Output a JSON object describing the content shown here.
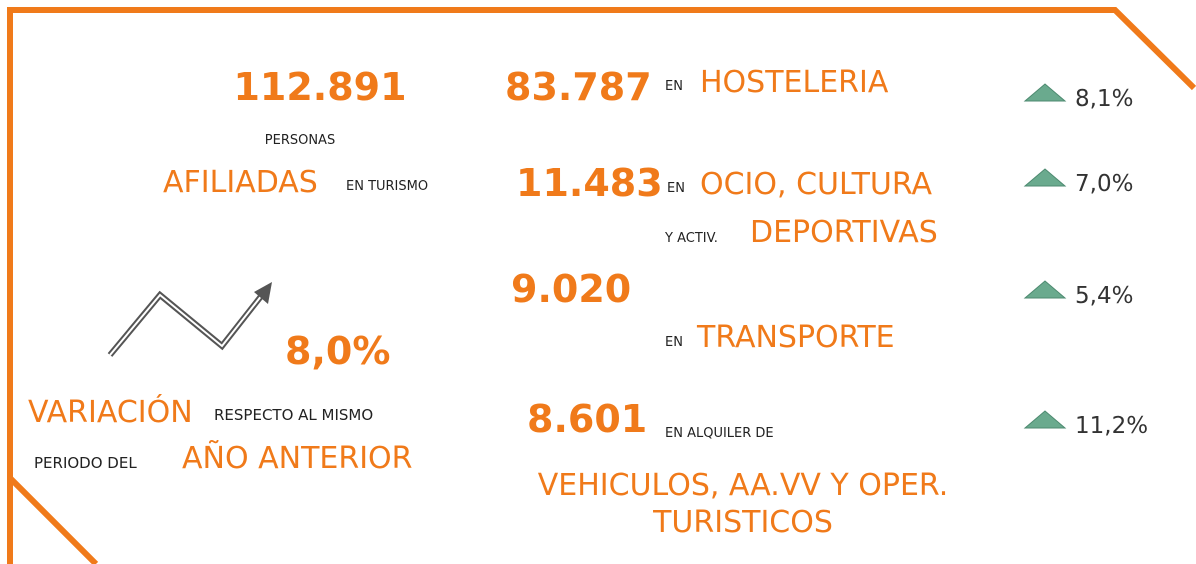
{
  "total": {
    "value": "112.891",
    "line1": "PERSONAS",
    "highlight": "AFILIADAS",
    "rest": "EN TURISMO"
  },
  "variation": {
    "value": "8,0%",
    "highlight1": "VARIACIÓN",
    "rest1": "RESPECTO AL MISMO",
    "rest2": "PERIODO DEL",
    "highlight2": "AÑO ANTERIOR"
  },
  "sectors": [
    {
      "value": "83.787",
      "prefix": "EN",
      "label": "HOSTELERIA",
      "change": "8,1%"
    },
    {
      "value": "11.483",
      "prefix": "EN",
      "label": "OCIO, CULTURA",
      "prefix2": "Y ACTIV.",
      "label2": "DEPORTIVAS",
      "change": "7,0%"
    },
    {
      "value": "9.020",
      "prefix": "EN",
      "label": "TRANSPORTE",
      "change": "5,4%"
    },
    {
      "value": "8.601",
      "prefix": "EN ALQUILER DE",
      "label": "VEHICULOS, AA.VV Y OPER.",
      "label2": "TURISTICOS",
      "change": "11,2%"
    }
  ]
}
